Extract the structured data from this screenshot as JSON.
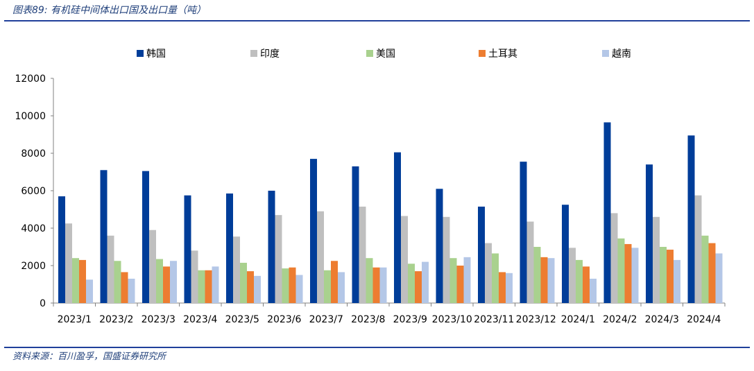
{
  "figure": {
    "title": "图表89: 有机硅中间体出口国及出口量（吨）",
    "source": "资料来源：百川盈孚，国盛证券研究所"
  },
  "chart_data": {
    "type": "bar",
    "categories": [
      "2023/1",
      "2023/2",
      "2023/3",
      "2023/4",
      "2023/5",
      "2023/6",
      "2023/7",
      "2023/8",
      "2023/9",
      "2023/10",
      "2023/11",
      "2023/12",
      "2024/1",
      "2024/2",
      "2024/3",
      "2024/4"
    ],
    "series": [
      {
        "name": "韩国",
        "color": "#003d99",
        "values": [
          5700,
          7100,
          7050,
          5750,
          5850,
          6000,
          7700,
          7300,
          8050,
          6100,
          5150,
          7550,
          5250,
          9650,
          7400,
          8950
        ]
      },
      {
        "name": "印度",
        "color": "#bfbfbf",
        "values": [
          4250,
          3600,
          3900,
          2800,
          3550,
          4700,
          4900,
          5150,
          4650,
          4600,
          3200,
          4350,
          2950,
          4800,
          4600,
          5750
        ]
      },
      {
        "name": "美国",
        "color": "#a9d18e",
        "values": [
          2400,
          2250,
          2350,
          1750,
          2150,
          1850,
          1750,
          2400,
          2100,
          2400,
          2650,
          3000,
          2300,
          3450,
          3000,
          3600
        ]
      },
      {
        "name": "土耳其",
        "color": "#ed7d31",
        "values": [
          2300,
          1650,
          1950,
          1750,
          1700,
          1900,
          2250,
          1900,
          1700,
          2000,
          1650,
          2450,
          1950,
          3150,
          2850,
          3200
        ]
      },
      {
        "name": "越南",
        "color": "#b4c7e7",
        "values": [
          1250,
          1300,
          2250,
          1950,
          1450,
          1500,
          1650,
          1900,
          2200,
          2450,
          1600,
          2400,
          1300,
          2950,
          2300,
          2650
        ]
      }
    ],
    "ylim": [
      0,
      12000
    ],
    "yticks": [
      0,
      2000,
      4000,
      6000,
      8000,
      10000,
      12000
    ],
    "grid": false,
    "legend_position": "top"
  }
}
